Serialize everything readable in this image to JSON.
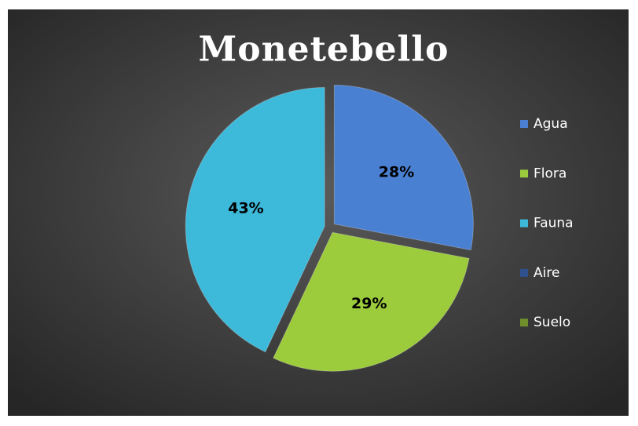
{
  "chart_data": {
    "type": "pie",
    "title": "Monetebello",
    "categories": [
      "Agua",
      "Flora",
      "Fauna",
      "Aire",
      "Suelo"
    ],
    "values": [
      28,
      29,
      43,
      0,
      0
    ],
    "value_labels": [
      "28%",
      "29%",
      "43%",
      null,
      null
    ],
    "colors": [
      "#4a80d2",
      "#9ccb3c",
      "#3db9da",
      "#2f5190",
      "#6f8f2c"
    ],
    "legend": "right"
  }
}
